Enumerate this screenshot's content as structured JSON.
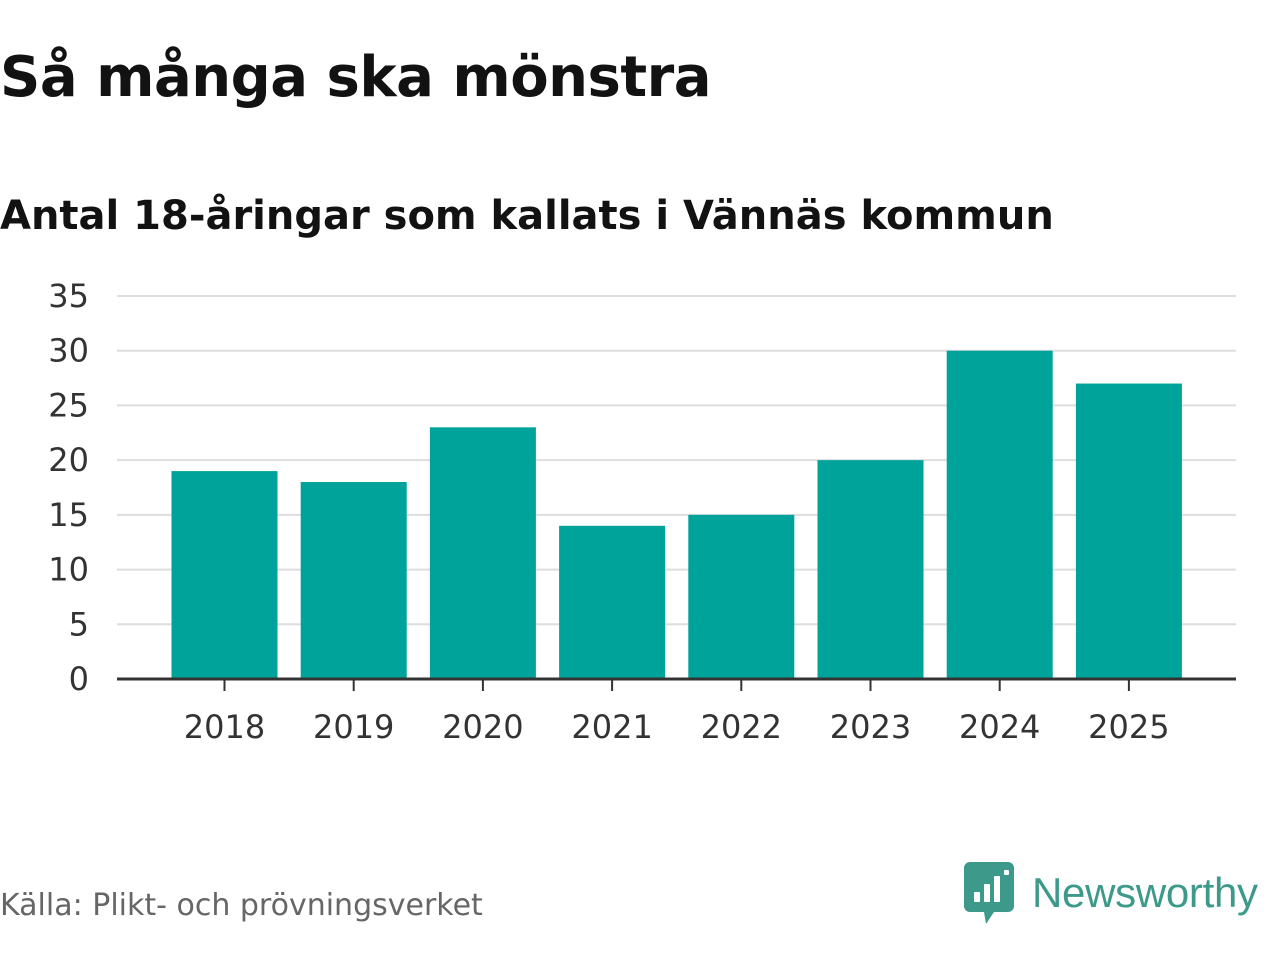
{
  "chart_data": {
    "type": "bar",
    "title": "Så många ska mönstra",
    "subtitle": "Antal 18-åringar som kallats i Vännäs kommun",
    "categories": [
      "2018",
      "2019",
      "2020",
      "2021",
      "2022",
      "2023",
      "2024",
      "2025"
    ],
    "values": [
      19,
      18,
      23,
      14,
      15,
      20,
      30,
      27
    ],
    "xlabel": "",
    "ylabel": "",
    "ylim": [
      0,
      35
    ],
    "yticks": [
      0,
      5,
      10,
      15,
      20,
      25,
      30,
      35
    ],
    "grid": true,
    "bar_color": "#00a39a"
  },
  "footer": {
    "source": "Källa: Plikt- och prövningsverket",
    "brand": "Newsworthy",
    "brand_color": "#3d9a8b",
    "brand_icon": "newsworthy-logo-icon"
  }
}
